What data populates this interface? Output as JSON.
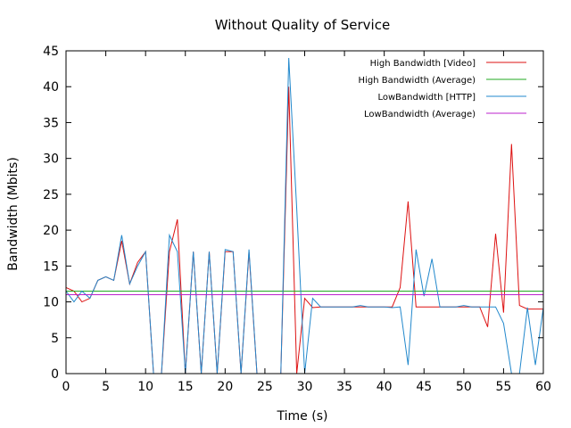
{
  "chart_data": {
    "type": "line",
    "title": "Without Quality of Service",
    "xlabel": "Time (s)",
    "ylabel": "Bandwidth (Mbits)",
    "xlim": [
      0,
      60
    ],
    "ylim": [
      0,
      45
    ],
    "xticks": [
      0,
      5,
      10,
      15,
      20,
      25,
      30,
      35,
      40,
      45,
      50,
      55,
      60
    ],
    "yticks": [
      0,
      5,
      10,
      15,
      20,
      25,
      30,
      35,
      40,
      45
    ],
    "grid": false,
    "legend_position": "top-right",
    "series": [
      {
        "name": "High Bandwidth [Video]",
        "color": "#dd1111",
        "points": [
          [
            0,
            12
          ],
          [
            1,
            11.5
          ],
          [
            2,
            10
          ],
          [
            3,
            10.5
          ],
          [
            4,
            13
          ],
          [
            5,
            13.5
          ],
          [
            6,
            13
          ],
          [
            7,
            18.5
          ],
          [
            8,
            12.5
          ],
          [
            9,
            15.5
          ],
          [
            10,
            17
          ],
          [
            11,
            0
          ],
          [
            12,
            0
          ],
          [
            13,
            17
          ],
          [
            14,
            21.5
          ],
          [
            15,
            0
          ],
          [
            16,
            17
          ],
          [
            17,
            0
          ],
          [
            18,
            17
          ],
          [
            19,
            0
          ],
          [
            20,
            17
          ],
          [
            21,
            17
          ],
          [
            22,
            0
          ],
          [
            23,
            17
          ],
          [
            24,
            0
          ],
          [
            25,
            0
          ],
          [
            26,
            0
          ],
          [
            27,
            0
          ],
          [
            28,
            40
          ],
          [
            29,
            0
          ],
          [
            30,
            10.5
          ],
          [
            31,
            9.2
          ],
          [
            32,
            9.3
          ],
          [
            33,
            9.3
          ],
          [
            34,
            9.3
          ],
          [
            35,
            9.3
          ],
          [
            36,
            9.3
          ],
          [
            37,
            9.3
          ],
          [
            38,
            9.3
          ],
          [
            39,
            9.3
          ],
          [
            40,
            9.3
          ],
          [
            41,
            9.3
          ],
          [
            42,
            12
          ],
          [
            43,
            24
          ],
          [
            44,
            9.3
          ],
          [
            45,
            9.3
          ],
          [
            46,
            9.3
          ],
          [
            47,
            9.3
          ],
          [
            48,
            9.3
          ],
          [
            49,
            9.3
          ],
          [
            50,
            9.3
          ],
          [
            51,
            9.3
          ],
          [
            52,
            9.3
          ],
          [
            53,
            6.5
          ],
          [
            54,
            19.5
          ],
          [
            55,
            8.5
          ],
          [
            56,
            32
          ],
          [
            57,
            9.5
          ],
          [
            58,
            9
          ],
          [
            59,
            9
          ],
          [
            60,
            9
          ]
        ]
      },
      {
        "name": "High Bandwidth (Average)",
        "color": "#22aa22",
        "points": [
          [
            0,
            11.5
          ],
          [
            60,
            11.5
          ]
        ]
      },
      {
        "name": "LowBandwidth [HTTP]",
        "color": "#2288cc",
        "points": [
          [
            0,
            11.5
          ],
          [
            1,
            10
          ],
          [
            2,
            11.5
          ],
          [
            3,
            10.5
          ],
          [
            4,
            13
          ],
          [
            5,
            13.5
          ],
          [
            6,
            13
          ],
          [
            7,
            19.3
          ],
          [
            8,
            12.5
          ],
          [
            9,
            15
          ],
          [
            10,
            17
          ],
          [
            11,
            0
          ],
          [
            12,
            0
          ],
          [
            13,
            19.3
          ],
          [
            14,
            17
          ],
          [
            15,
            0
          ],
          [
            16,
            17
          ],
          [
            17,
            0
          ],
          [
            18,
            17
          ],
          [
            19,
            0
          ],
          [
            20,
            17.3
          ],
          [
            21,
            17
          ],
          [
            22,
            0
          ],
          [
            23,
            17.3
          ],
          [
            24,
            0
          ],
          [
            25,
            0
          ],
          [
            26,
            0
          ],
          [
            27,
            0
          ],
          [
            28,
            44
          ],
          [
            29,
            23
          ],
          [
            30,
            0
          ],
          [
            31,
            10.5
          ],
          [
            32,
            9.3
          ],
          [
            33,
            9.3
          ],
          [
            34,
            9.3
          ],
          [
            35,
            9.3
          ],
          [
            36,
            9.3
          ],
          [
            37,
            9.5
          ],
          [
            38,
            9.3
          ],
          [
            39,
            9.3
          ],
          [
            40,
            9.3
          ],
          [
            41,
            9.2
          ],
          [
            42,
            9.3
          ],
          [
            43,
            1.2
          ],
          [
            44,
            17.3
          ],
          [
            45,
            10.8
          ],
          [
            46,
            16
          ],
          [
            47,
            9.3
          ],
          [
            48,
            9.3
          ],
          [
            49,
            9.3
          ],
          [
            50,
            9.5
          ],
          [
            51,
            9.3
          ],
          [
            52,
            9.3
          ],
          [
            53,
            9.3
          ],
          [
            54,
            9.3
          ],
          [
            55,
            7
          ],
          [
            56,
            0
          ],
          [
            57,
            0
          ],
          [
            58,
            9.2
          ],
          [
            59,
            1.2
          ],
          [
            60,
            9.2
          ]
        ]
      },
      {
        "name": "LowBandwidth (Average)",
        "color": "#bb22cc",
        "points": [
          [
            0,
            11
          ],
          [
            60,
            11
          ]
        ]
      }
    ]
  }
}
